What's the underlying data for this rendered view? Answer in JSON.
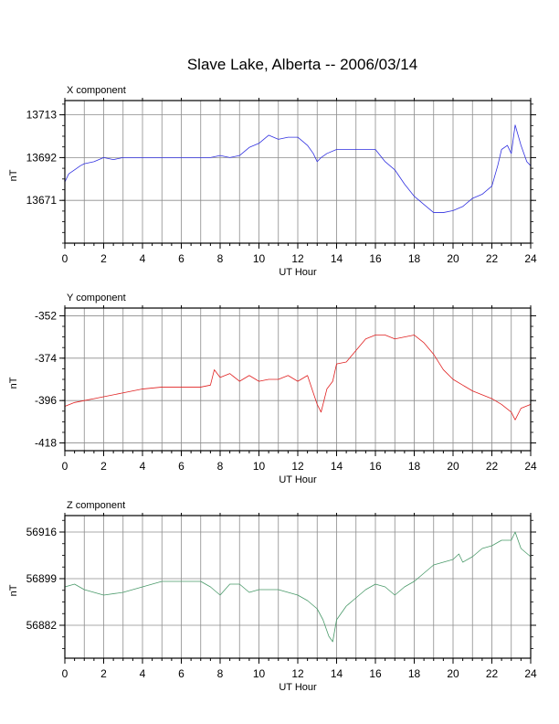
{
  "figure": {
    "title": "Slave Lake, Alberta -- 2006/03/14"
  },
  "chart_data": [
    {
      "type": "line",
      "title": "X component",
      "xlabel": "UT Hour",
      "ylabel": "nT",
      "xlim": [
        0,
        24
      ],
      "ylim": [
        13650,
        13720
      ],
      "xticks": [
        0,
        2,
        4,
        6,
        8,
        10,
        12,
        14,
        16,
        18,
        20,
        22,
        24
      ],
      "yticks": [
        13671,
        13692,
        13713
      ],
      "grid": true,
      "color": "#3030e0",
      "series": [
        {
          "x": [
            0,
            0.2,
            0.5,
            0.8,
            1,
            1.5,
            2,
            2.5,
            3,
            4,
            5,
            6,
            7,
            7.5,
            8,
            8.5,
            9,
            9.5,
            10,
            10.5,
            11,
            11.5,
            12,
            12.5,
            12.8,
            13,
            13.2,
            13.5,
            14,
            14.5,
            15,
            15.5,
            16,
            16.5,
            17,
            17.5,
            18,
            18.5,
            19,
            19.5,
            20,
            20.5,
            21,
            21.5,
            22,
            22.3,
            22.5,
            22.8,
            23,
            23.2,
            23.5,
            23.8,
            24
          ],
          "values": [
            13680,
            13684,
            13686,
            13688,
            13689,
            13690,
            13692,
            13691,
            13692,
            13692,
            13692,
            13692,
            13692,
            13692,
            13693,
            13692,
            13693,
            13697,
            13699,
            13703,
            13701,
            13702,
            13702,
            13698,
            13694,
            13690,
            13692,
            13694,
            13696,
            13696,
            13696,
            13696,
            13696,
            13690,
            13686,
            13679,
            13673,
            13669,
            13665,
            13665,
            13666,
            13668,
            13672,
            13674,
            13678,
            13688,
            13696,
            13698,
            13694,
            13708,
            13698,
            13690,
            13688
          ]
        }
      ]
    },
    {
      "type": "line",
      "title": "Y component",
      "xlabel": "UT Hour",
      "ylabel": "nT",
      "xlim": [
        0,
        24
      ],
      "ylim": [
        -422,
        -348
      ],
      "xticks": [
        0,
        2,
        4,
        6,
        8,
        10,
        12,
        14,
        16,
        18,
        20,
        22,
        24
      ],
      "yticks": [
        -352,
        -374,
        -396,
        -418
      ],
      "grid": true,
      "color": "#e02020",
      "series": [
        {
          "x": [
            0,
            0.5,
            1,
            1.5,
            2,
            3,
            4,
            5,
            6,
            7,
            7.5,
            7.7,
            8,
            8.5,
            9,
            9.5,
            10,
            10.5,
            11,
            11.5,
            12,
            12.5,
            12.8,
            13,
            13.2,
            13.5,
            13.8,
            14,
            14.5,
            15,
            15.5,
            16,
            16.5,
            17,
            17.5,
            18,
            18.5,
            19,
            19.5,
            20,
            20.5,
            21,
            21.5,
            22,
            22.5,
            23,
            23.2,
            23.5,
            24
          ],
          "values": [
            -399,
            -397,
            -396,
            -395,
            -394,
            -392,
            -390,
            -389,
            -389,
            -389,
            -388,
            -380,
            -384,
            -382,
            -386,
            -383,
            -386,
            -385,
            -385,
            -383,
            -386,
            -383,
            -392,
            -398,
            -402,
            -390,
            -386,
            -377,
            -376,
            -370,
            -364,
            -362,
            -362,
            -364,
            -363,
            -362,
            -366,
            -372,
            -380,
            -385,
            -388,
            -391,
            -393,
            -395,
            -398,
            -402,
            -406,
            -400,
            -398
          ]
        }
      ]
    },
    {
      "type": "line",
      "title": "Z component",
      "xlabel": "UT Hour",
      "ylabel": "nT",
      "xlim": [
        0,
        24
      ],
      "ylim": [
        56870,
        56922
      ],
      "xticks": [
        0,
        2,
        4,
        6,
        8,
        10,
        12,
        14,
        16,
        18,
        20,
        22,
        24
      ],
      "yticks": [
        56882,
        56899,
        56916
      ],
      "grid": true,
      "color": "#4a9a6a",
      "series": [
        {
          "x": [
            0,
            0.5,
            1,
            2,
            3,
            4,
            5,
            6,
            7,
            7.5,
            8,
            8.5,
            9,
            9.5,
            10,
            11,
            12,
            12.5,
            13,
            13.3,
            13.6,
            13.8,
            14,
            14.5,
            15,
            15.5,
            16,
            16.5,
            17,
            17.5,
            18,
            18.5,
            19,
            19.5,
            20,
            20.3,
            20.5,
            21,
            21.5,
            22,
            22.5,
            23,
            23.2,
            23.5,
            24
          ],
          "values": [
            56896,
            56897,
            56895,
            56893,
            56894,
            56896,
            56898,
            56898,
            56898,
            56896,
            56893,
            56897,
            56897,
            56894,
            56895,
            56895,
            56893,
            56891,
            56888,
            56884,
            56878,
            56876,
            56884,
            56889,
            56892,
            56895,
            56897,
            56896,
            56893,
            56896,
            56898,
            56901,
            56904,
            56905,
            56906,
            56908,
            56905,
            56907,
            56910,
            56911,
            56913,
            56913,
            56916,
            56910,
            56907
          ]
        }
      ]
    }
  ]
}
